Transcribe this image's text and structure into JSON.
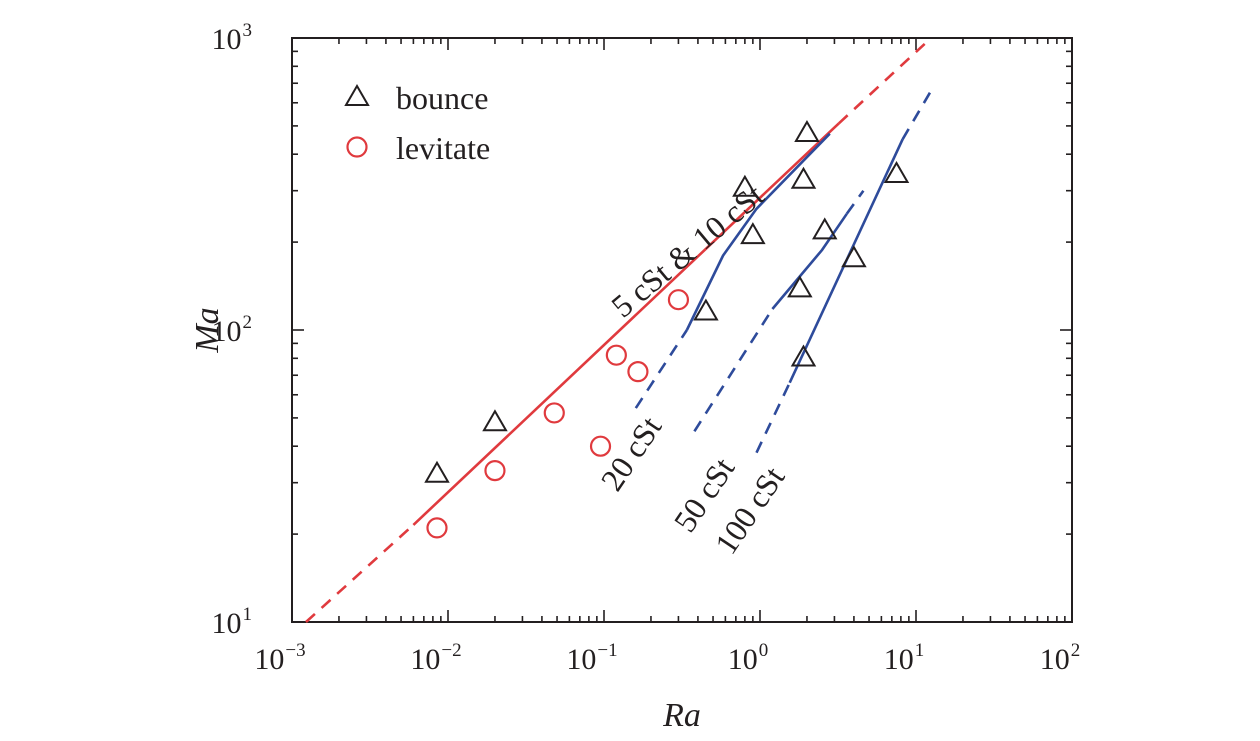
{
  "chart_data": {
    "type": "scatter",
    "xscale": "log",
    "yscale": "log",
    "xlim": [
      0.001,
      100
    ],
    "ylim": [
      10,
      1000
    ],
    "xlabel": "Ra",
    "ylabel": "Ma",
    "xticks": [
      {
        "base": "10",
        "exp": "−3",
        "value": 0.001
      },
      {
        "base": "10",
        "exp": "−2",
        "value": 0.01
      },
      {
        "base": "10",
        "exp": "−1",
        "value": 0.1
      },
      {
        "base": "10",
        "exp": "0",
        "value": 1
      },
      {
        "base": "10",
        "exp": "1",
        "value": 10
      },
      {
        "base": "10",
        "exp": "2",
        "value": 100
      }
    ],
    "yticks": [
      {
        "base": "10",
        "exp": "1",
        "value": 10
      },
      {
        "base": "10",
        "exp": "2",
        "value": 100
      },
      {
        "base": "10",
        "exp": "3",
        "value": 1000
      }
    ],
    "grid": false,
    "legend_position": "top-left",
    "series": [
      {
        "name": "bounce",
        "marker": "triangle",
        "color": "#231f20",
        "points": [
          {
            "x": 0.0085,
            "y": 32
          },
          {
            "x": 0.02,
            "y": 48
          },
          {
            "x": 0.45,
            "y": 115
          },
          {
            "x": 0.8,
            "y": 305
          },
          {
            "x": 0.9,
            "y": 210
          },
          {
            "x": 1.8,
            "y": 138
          },
          {
            "x": 1.9,
            "y": 325
          },
          {
            "x": 1.9,
            "y": 80
          },
          {
            "x": 2.0,
            "y": 470
          },
          {
            "x": 2.6,
            "y": 218
          },
          {
            "x": 4.0,
            "y": 175
          },
          {
            "x": 7.5,
            "y": 340
          }
        ]
      },
      {
        "name": "levitate",
        "marker": "circle",
        "color": "#e03a3e",
        "points": [
          {
            "x": 0.0085,
            "y": 21
          },
          {
            "x": 0.02,
            "y": 33
          },
          {
            "x": 0.048,
            "y": 52
          },
          {
            "x": 0.095,
            "y": 40
          },
          {
            "x": 0.12,
            "y": 82
          },
          {
            "x": 0.165,
            "y": 72
          },
          {
            "x": 0.3,
            "y": 127
          }
        ]
      }
    ],
    "curves": [
      {
        "label": "5 cSt & 10 cSt",
        "color": "#e03a3e",
        "solid": [
          [
            0.006,
            21.5
          ],
          [
            3.2,
            510
          ]
        ],
        "dashed": [
          [
            [
              0.00123,
              10
            ],
            [
              0.006,
              21.5
            ]
          ],
          [
            [
              3.2,
              510
            ],
            [
              12.5,
              1000
            ]
          ]
        ]
      },
      {
        "label": "20 cSt",
        "color": "#2e4b9b",
        "solid": [
          [
            0.34,
            100
          ],
          [
            0.58,
            180
          ],
          [
            0.95,
            260
          ],
          [
            2.8,
            470
          ]
        ],
        "dashed": [
          [
            [
              0.16,
              54
            ],
            [
              0.34,
              100
            ]
          ]
        ]
      },
      {
        "label": "50 cSt",
        "color": "#2e4b9b",
        "solid": [
          [
            1.2,
            118
          ],
          [
            2.5,
            188
          ],
          [
            3.6,
            250
          ]
        ],
        "dashed": [
          [
            [
              0.38,
              45
            ],
            [
              1.2,
              118
            ]
          ],
          [
            [
              3.6,
              250
            ],
            [
              4.6,
              300
            ]
          ]
        ]
      },
      {
        "label": "100 cSt",
        "color": "#2e4b9b",
        "solid": [
          [
            1.55,
            66
          ],
          [
            8.2,
            450
          ]
        ],
        "dashed": [
          [
            [
              0.95,
              38
            ],
            [
              1.55,
              66
            ]
          ],
          [
            [
              8.2,
              450
            ],
            [
              12.5,
              660
            ]
          ]
        ]
      }
    ],
    "annotations": [
      {
        "text": "5 cSt & 10 cSt",
        "x": 0.38,
        "y": 175,
        "angle": -40
      },
      {
        "text": "20 cSt",
        "x": 0.17,
        "y": 36,
        "angle": -56
      },
      {
        "text": "50 cSt",
        "x": 0.5,
        "y": 26,
        "angle": -56
      },
      {
        "text": "100 cSt",
        "x": 0.98,
        "y": 23,
        "angle": -56
      }
    ]
  }
}
